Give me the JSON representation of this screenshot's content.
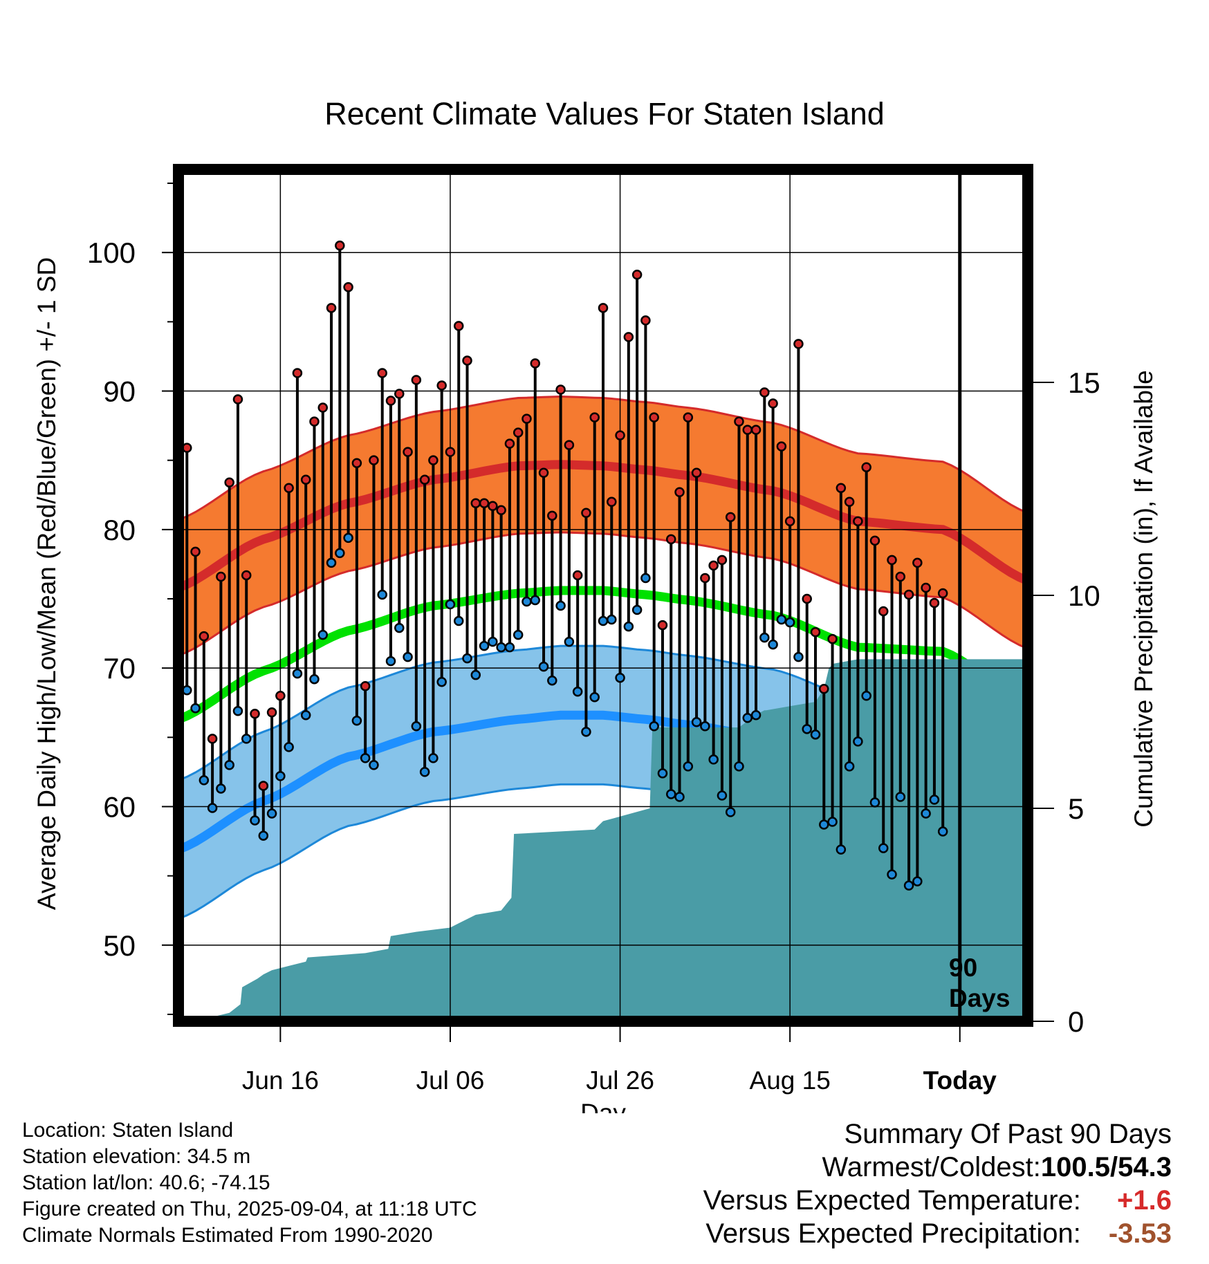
{
  "chart_data": {
    "type": "line",
    "title": "Recent Climate Values For Staten Island",
    "xlabel": "Day",
    "ylabel": "Average Daily High/Low/Mean (Red/Blue/Green) +/- 1 SD",
    "y2label": "Cumulative Precipitation (in), If Available",
    "xlim": [
      0,
      100
    ],
    "ylim": [
      44.5,
      106
    ],
    "y2lim": [
      0,
      20
    ],
    "x_ticks": [
      {
        "day": 12,
        "label": "Jun 16"
      },
      {
        "day": 32,
        "label": "Jul 06"
      },
      {
        "day": 52,
        "label": "Jul 26"
      },
      {
        "day": 72,
        "label": "Aug 15"
      },
      {
        "day": 92,
        "label": "Today"
      }
    ],
    "y_ticks": [
      50,
      60,
      70,
      80,
      90,
      100
    ],
    "y2_ticks": [
      0,
      5,
      10,
      15
    ],
    "today_day": 92,
    "period_label_line1": "90",
    "period_label_line2": "Days",
    "normals": {
      "days": [
        0,
        10,
        20,
        30,
        40,
        45,
        50,
        55,
        60,
        70,
        80,
        90,
        100
      ],
      "high_mean": [
        75.8,
        79.3,
        81.9,
        83.6,
        84.6,
        84.7,
        84.6,
        84.3,
        83.9,
        82.8,
        80.6,
        80.0,
        76.3
      ],
      "high_sd": 4.9,
      "low_mean": [
        56.9,
        60.4,
        63.6,
        65.4,
        66.3,
        66.6,
        66.6,
        66.3,
        65.9,
        64.9,
        62.7,
        62.6,
        58.8
      ],
      "low_sd": 5.0,
      "mean": [
        66.3,
        69.8,
        72.7,
        74.5,
        75.4,
        75.6,
        75.6,
        75.3,
        74.9,
        73.8,
        71.5,
        71.2,
        67.5
      ]
    },
    "daily": {
      "start_day": 1,
      "high": [
        85.9,
        78.4,
        72.3,
        64.9,
        76.6,
        83.4,
        89.4,
        76.7,
        66.7,
        61.5,
        66.8,
        68.0,
        83.0,
        91.3,
        83.6,
        87.8,
        88.8,
        96.0,
        100.5,
        97.5,
        84.8,
        68.7,
        85.0,
        91.3,
        89.3,
        89.8,
        85.6,
        90.8,
        83.6,
        85.0,
        90.4,
        85.6,
        94.7,
        92.2,
        81.9,
        81.9,
        81.7,
        81.4,
        86.2,
        87.0,
        88.0,
        92.0,
        84.1,
        81.0,
        90.1,
        86.1,
        76.7,
        81.2,
        88.1,
        96.0,
        82.0,
        86.8,
        93.9,
        98.4,
        95.1,
        88.1,
        73.1,
        79.3,
        82.7,
        88.1,
        84.1,
        76.5,
        77.4,
        77.8,
        80.9,
        87.8,
        87.2,
        87.2,
        89.9,
        89.1,
        86.0,
        80.6,
        93.4,
        75.0,
        72.6,
        68.5,
        72.1,
        83.0,
        82.0,
        80.6,
        84.5,
        79.2,
        74.1,
        77.8,
        76.6,
        75.3,
        77.6,
        75.8,
        74.7,
        75.4
      ],
      "low": [
        68.4,
        67.1,
        61.9,
        59.9,
        61.3,
        63.0,
        66.9,
        64.9,
        59.0,
        57.9,
        59.5,
        62.2,
        64.3,
        69.6,
        66.6,
        69.2,
        72.4,
        77.6,
        78.3,
        79.4,
        66.2,
        63.5,
        63.0,
        75.3,
        70.5,
        72.9,
        70.8,
        65.8,
        62.5,
        63.5,
        69.0,
        74.6,
        73.4,
        70.7,
        69.5,
        71.6,
        71.9,
        71.5,
        71.5,
        72.4,
        74.8,
        74.9,
        70.1,
        69.1,
        74.5,
        71.9,
        68.3,
        65.4,
        67.9,
        73.4,
        73.5,
        69.3,
        73.0,
        74.2,
        76.5,
        65.8,
        62.4,
        60.9,
        60.7,
        62.9,
        66.1,
        65.8,
        63.4,
        60.8,
        59.6,
        62.9,
        66.4,
        66.6,
        72.2,
        71.7,
        73.5,
        73.3,
        70.8,
        65.6,
        65.2,
        58.7,
        58.9,
        56.9,
        62.9,
        64.7,
        68.0,
        60.3,
        57.0,
        55.1,
        60.7,
        54.3,
        54.6,
        59.5,
        60.5,
        58.2
      ]
    },
    "precip": {
      "days": [
        0,
        2,
        4,
        6,
        7.3,
        7.5,
        9.3,
        10,
        11,
        13,
        15,
        15.2,
        22,
        24.7,
        25,
        28,
        32,
        33,
        35,
        38,
        39.2,
        39.5,
        49,
        50,
        55.5,
        55.8,
        66,
        68,
        69,
        69.2,
        72,
        75,
        76,
        76.6,
        77.2,
        80,
        100
      ],
      "values": [
        0,
        0.05,
        0.1,
        0.2,
        0.4,
        0.8,
        1.0,
        1.1,
        1.2,
        1.3,
        1.4,
        1.5,
        1.6,
        1.7,
        2.0,
        2.1,
        2.2,
        2.3,
        2.5,
        2.6,
        2.9,
        4.4,
        4.5,
        4.7,
        5.0,
        6.9,
        6.9,
        7.2,
        7.3,
        7.3,
        7.4,
        7.5,
        7.8,
        8.3,
        8.4,
        8.5,
        8.5
      ]
    }
  },
  "footer": {
    "location": "Location: Staten Island",
    "elevation": "Station elevation: 34.5 m",
    "latlon": "Station lat/lon: 40.6; -74.15",
    "created": "Figure created on Thu, 2025-09-04, at 11:18 UTC",
    "normals_note": "Climate Normals Estimated From 1990-2020"
  },
  "summary": {
    "heading": "Summary Of Past 90 Days",
    "warm_cold_label": "Warmest/Coldest:",
    "warmest": "100.5",
    "slash": "/",
    "coldest": "54.3",
    "temp_label": "Versus Expected Temperature:",
    "temp_value": "+1.6",
    "precip_label": "Versus Expected Precipitation:",
    "precip_value": "-3.53"
  },
  "colors": {
    "high_band": "#f57a30",
    "high_line": "#d42b2b",
    "low_band": "#86c3ea",
    "low_line": "#1e90ff",
    "mean_line": "#00e100",
    "precip_fill": "#4a9ca6",
    "high_dot": "#d42b2b",
    "low_dot": "#1e88d8",
    "temp_value": "#d62a2a",
    "precip_value": "#a0522d"
  }
}
